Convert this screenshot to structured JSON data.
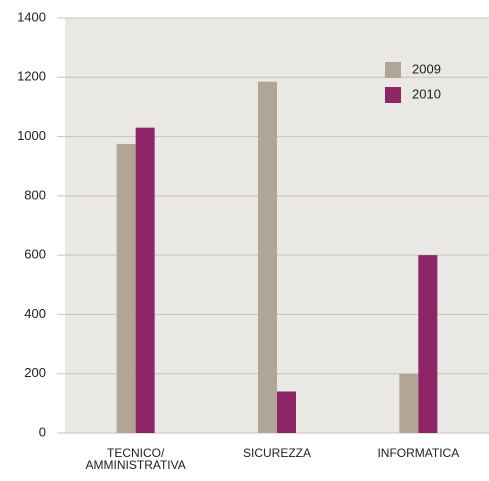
{
  "chart_data": {
    "type": "bar",
    "categories": [
      "TECNICO/\nAMMINISTRATIVA",
      "SICUREZZA",
      "INFORMATICA"
    ],
    "series": [
      {
        "name": "2009",
        "color": "#b1a596",
        "values": [
          975,
          1185,
          200
        ]
      },
      {
        "name": "2010",
        "color": "#8e2566",
        "values": [
          1030,
          140,
          600
        ]
      }
    ],
    "ylim": [
      0,
      1400
    ],
    "yticks": [
      0,
      200,
      400,
      600,
      800,
      1000,
      1200,
      1400
    ],
    "grid": true,
    "legend": "upper right"
  }
}
